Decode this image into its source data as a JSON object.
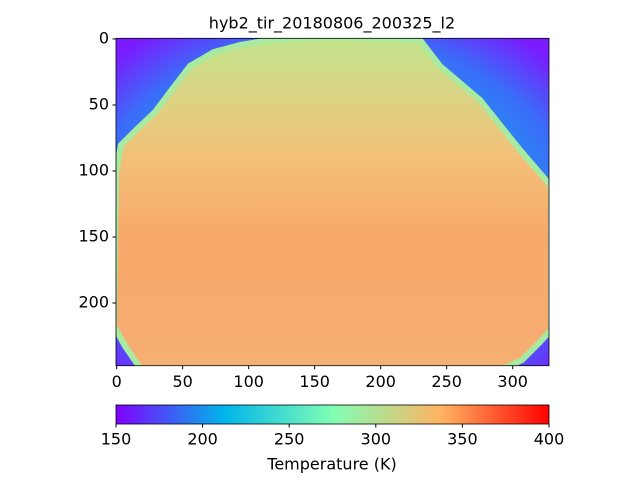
{
  "chart_data": {
    "type": "image",
    "title": "hyb2_tir_20180806_200325_l2",
    "xlim": [
      -0.5,
      327.5
    ],
    "xticks": [
      0,
      50,
      100,
      150,
      200,
      250,
      300
    ],
    "ylim": [
      247.5,
      -0.5
    ],
    "yticks": [
      0,
      50,
      100,
      150,
      200
    ],
    "colormap": "rainbow",
    "colorbar": {
      "label": "Temperature (K)",
      "clim": [
        150,
        400
      ],
      "ticks": [
        150,
        200,
        250,
        300,
        350,
        400
      ]
    }
  }
}
